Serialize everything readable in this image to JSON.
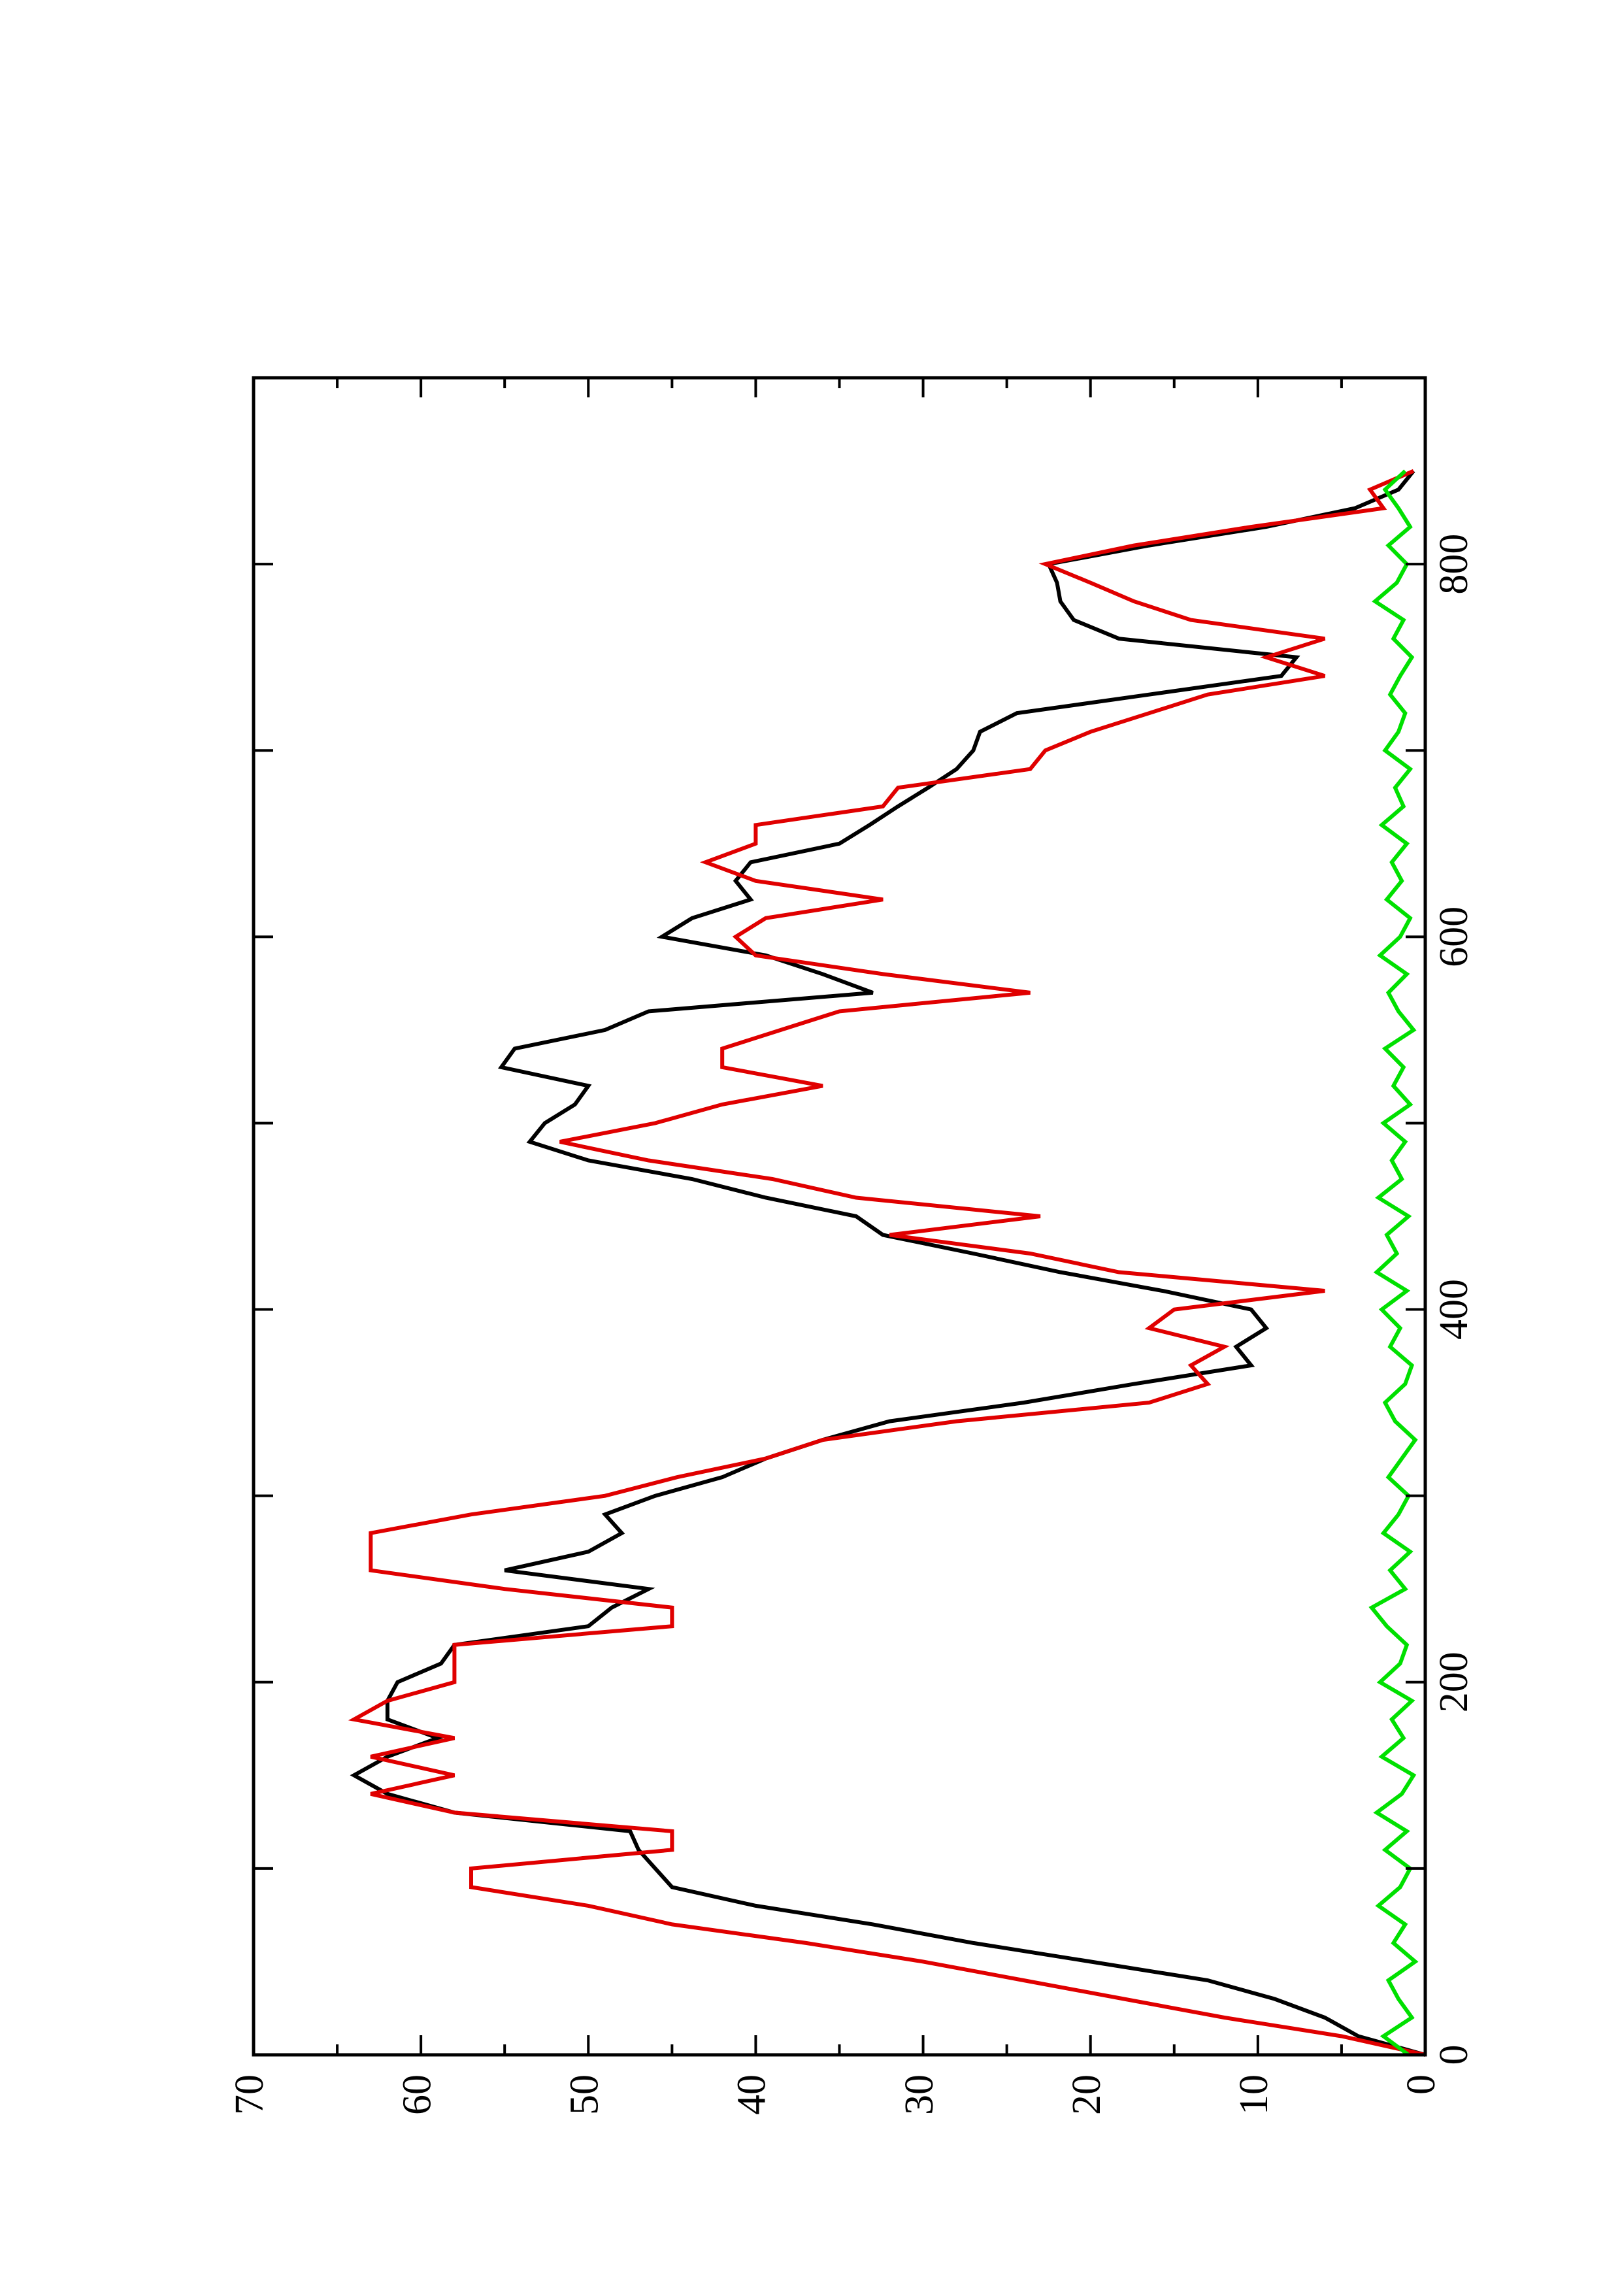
{
  "chart_data": {
    "type": "line",
    "x": [
      0,
      10,
      20,
      30,
      40,
      50,
      60,
      70,
      80,
      90,
      100,
      110,
      120,
      130,
      140,
      150,
      160,
      170,
      180,
      190,
      200,
      210,
      220,
      230,
      240,
      250,
      260,
      270,
      280,
      290,
      300,
      310,
      320,
      330,
      340,
      350,
      360,
      370,
      380,
      390,
      400,
      410,
      420,
      430,
      440,
      450,
      460,
      470,
      480,
      490,
      500,
      510,
      520,
      530,
      540,
      550,
      560,
      570,
      580,
      590,
      600,
      610,
      620,
      630,
      640,
      650,
      660,
      670,
      680,
      690,
      700,
      710,
      720,
      730,
      740,
      750,
      760,
      770,
      780,
      790,
      800,
      810,
      820,
      830,
      840,
      850
    ],
    "series": [
      {
        "color": "#000000",
        "values": [
          0,
          4,
          6,
          9,
          13,
          20,
          27,
          33,
          40,
          45,
          46,
          47,
          47.5,
          58,
          62,
          64,
          62,
          59,
          62,
          62,
          61.4,
          58.8,
          58,
          50,
          48.6,
          46.4,
          55,
          50,
          48,
          49,
          46,
          42,
          39.4,
          36,
          32,
          24,
          17.4,
          10.4,
          11.3,
          9.5,
          10.4,
          15.7,
          21.8,
          27,
          32.4,
          34,
          39.4,
          43.8,
          50,
          53.5,
          52.6,
          50.8,
          50,
          55.2,
          54.4,
          49,
          46.4,
          33,
          36,
          39.4,
          45.6,
          43.8,
          40.3,
          41.2,
          40.3,
          35,
          33.2,
          31.5,
          29.7,
          28,
          27,
          26.6,
          24.4,
          16.5,
          8.6,
          7.7,
          18.3,
          21,
          21.8,
          22,
          22.5,
          16.5,
          9.5,
          4.2,
          1.6,
          0.7
        ]
      },
      {
        "color": "#e00000",
        "values": [
          0,
          5,
          12,
          18,
          24,
          30,
          37,
          45,
          50,
          57,
          57,
          45,
          45,
          58,
          63,
          58,
          63,
          58,
          64,
          62,
          58,
          58,
          58,
          45,
          45,
          55,
          63,
          63,
          63,
          57,
          49,
          44.7,
          39.4,
          36,
          28,
          16.5,
          13,
          14,
          12,
          16.5,
          15,
          6,
          18.3,
          23.6,
          32,
          23,
          34,
          39,
          46.4,
          51.7,
          46,
          42,
          36,
          42,
          42,
          38.5,
          35,
          23.6,
          32.4,
          40,
          41.2,
          39.4,
          32.4,
          40,
          43,
          40,
          40,
          32.4,
          31.5,
          23.6,
          22.7,
          20,
          16.5,
          13,
          6,
          9.5,
          6,
          14,
          17.4,
          20,
          22.7,
          17.4,
          10.4,
          2.5,
          3.3,
          0.7
        ]
      },
      {
        "color": "#00e000",
        "values": [
          1,
          2.5,
          0.8,
          1.6,
          2.2,
          0.6,
          1.9,
          1.2,
          2.8,
          1.5,
          0.9,
          2.4,
          1.1,
          2.9,
          1.4,
          0.7,
          2.6,
          1.3,
          2,
          0.8,
          2.7,
          1.5,
          1.1,
          2.3,
          3.2,
          1.2,
          2.1,
          0.9,
          2.5,
          1.6,
          1,
          2.2,
          1.4,
          0.6,
          1.8,
          2.4,
          1.2,
          0.8,
          2.1,
          1.5,
          2.6,
          1.1,
          2.9,
          1.7,
          2.3,
          1,
          2.8,
          1.4,
          2,
          1.2,
          2.5,
          0.9,
          1.9,
          1.3,
          2.4,
          0.7,
          1.6,
          2.2,
          1.1,
          2.7,
          1.5,
          0.9,
          2.3,
          1.4,
          2,
          1.1,
          2.6,
          1.3,
          1.8,
          0.9,
          2.4,
          1.6,
          1.2,
          2.1,
          1.5,
          0.8,
          1.9,
          1.3,
          3,
          1.7,
          1.1,
          2.2,
          0.9,
          1.6,
          2.4,
          1.2
        ]
      }
    ],
    "xlim": [
      0,
      900
    ],
    "ylim": [
      0,
      70
    ],
    "xticks": [
      0,
      200,
      400,
      600,
      800
    ],
    "xminorticks": [
      100,
      300,
      500,
      700
    ],
    "yticks": [
      0,
      10,
      20,
      30,
      40,
      50,
      60,
      70
    ],
    "yminorticks": [
      5,
      15,
      25,
      35,
      45,
      55,
      65
    ],
    "orientation": "rotated"
  }
}
